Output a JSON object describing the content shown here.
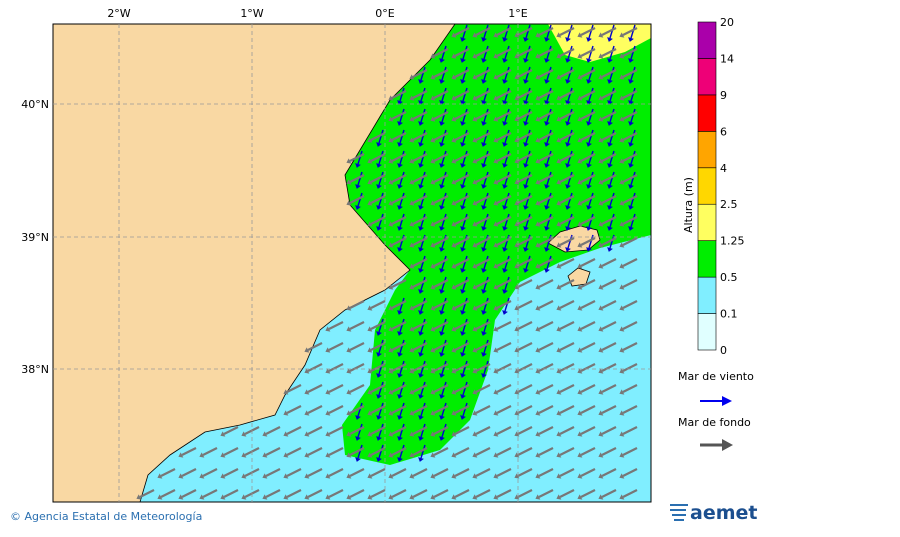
{
  "map": {
    "lon_labels": [
      "2°W",
      "1°W",
      "0°E",
      "1°E"
    ],
    "lat_labels": [
      "40°N",
      "39°N",
      "38°N"
    ]
  },
  "legend": {
    "title": "Altura (m)",
    "levels": [
      0,
      0.1,
      0.5,
      1.25,
      2.5,
      4,
      6,
      9,
      14,
      20
    ],
    "colors": [
      "#e0ffff",
      "#80eeff",
      "#00ee00",
      "#ffff60",
      "#ffd700",
      "#ffa500",
      "#ff0000",
      "#ee0077",
      "#aa00aa"
    ],
    "wind_sea": "Mar de viento",
    "swell": "Mar de fondo"
  },
  "footer": {
    "credit": "© Agencia Estatal de Meteorología",
    "logo": "aemet"
  }
}
